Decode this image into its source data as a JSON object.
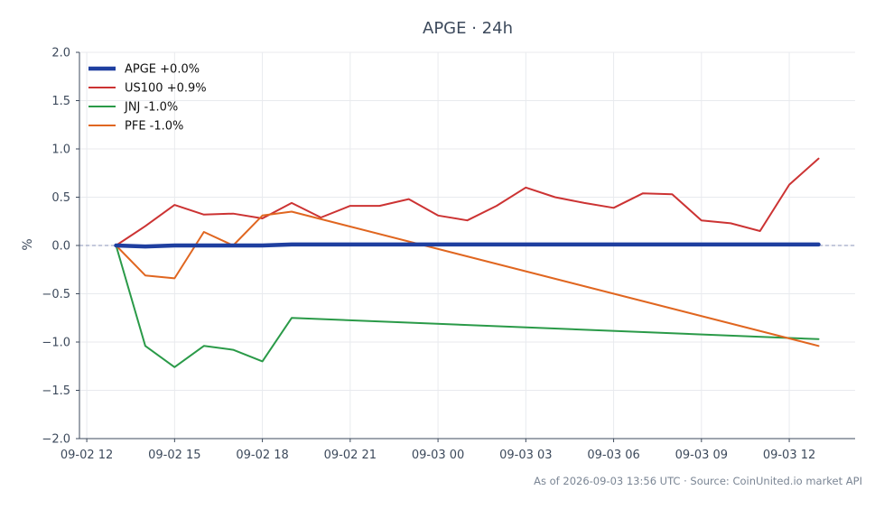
{
  "chart_data": {
    "type": "line",
    "title": "APGE · 24h",
    "xlabel": "",
    "ylabel": "%",
    "ylim": [
      -2.0,
      2.0
    ],
    "yticks": [
      2.0,
      1.5,
      1.0,
      0.5,
      0.0,
      -0.5,
      -1.0,
      -1.5,
      -2.0
    ],
    "ytick_labels": [
      "2.0",
      "1.5",
      "1.0",
      "0.5",
      "0.0",
      "−0.5",
      "−1.0",
      "−1.5",
      "−2.0"
    ],
    "xlim": [
      "2026-09-02 11:45",
      "2026-09-03 14:15"
    ],
    "xticks": [
      "2026-09-02 12:00",
      "2026-09-02 15:00",
      "2026-09-02 18:00",
      "2026-09-02 21:00",
      "2026-09-03 00:00",
      "2026-09-03 03:00",
      "2026-09-03 06:00",
      "2026-09-03 09:00",
      "2026-09-03 12:00"
    ],
    "xtick_labels": [
      "09-02 12",
      "09-02 15",
      "09-02 18",
      "09-02 21",
      "09-03 00",
      "09-03 03",
      "09-03 06",
      "09-03 09",
      "09-03 12"
    ],
    "grid": true,
    "zero_line": true,
    "legend_position": "top-left",
    "series": [
      {
        "name": "APGE +0.0%",
        "color": "#1f3fa0",
        "emphasis": true,
        "x": [
          "2026-09-02 13:00",
          "2026-09-02 14:00",
          "2026-09-02 15:00",
          "2026-09-02 16:00",
          "2026-09-02 17:00",
          "2026-09-02 18:00",
          "2026-09-02 19:00",
          "2026-09-03 13:00"
        ],
        "values": [
          0.0,
          -0.01,
          0.0,
          0.0,
          0.0,
          0.0,
          0.01,
          0.01
        ]
      },
      {
        "name": "US100 +0.9%",
        "color": "#cc3333",
        "x": [
          "2026-09-02 13:00",
          "2026-09-02 14:00",
          "2026-09-02 15:00",
          "2026-09-02 16:00",
          "2026-09-02 17:00",
          "2026-09-02 18:00",
          "2026-09-02 19:00",
          "2026-09-02 20:00",
          "2026-09-02 21:00",
          "2026-09-02 22:00",
          "2026-09-02 23:00",
          "2026-09-03 00:00",
          "2026-09-03 01:00",
          "2026-09-03 02:00",
          "2026-09-03 03:00",
          "2026-09-03 04:00",
          "2026-09-03 05:00",
          "2026-09-03 06:00",
          "2026-09-03 07:00",
          "2026-09-03 08:00",
          "2026-09-03 09:00",
          "2026-09-03 10:00",
          "2026-09-03 11:00",
          "2026-09-03 12:00",
          "2026-09-03 13:00"
        ],
        "values": [
          0.0,
          0.2,
          0.42,
          0.32,
          0.33,
          0.28,
          0.44,
          0.29,
          0.41,
          0.41,
          0.48,
          0.31,
          0.26,
          0.41,
          0.6,
          0.5,
          0.44,
          0.39,
          0.54,
          0.53,
          0.26,
          0.23,
          0.15,
          0.63,
          0.9
        ]
      },
      {
        "name": "JNJ -1.0%",
        "color": "#2a9a48",
        "x": [
          "2026-09-02 13:00",
          "2026-09-02 14:00",
          "2026-09-02 15:00",
          "2026-09-02 16:00",
          "2026-09-02 17:00",
          "2026-09-02 18:00",
          "2026-09-02 19:00",
          "2026-09-03 13:00"
        ],
        "values": [
          0.0,
          -1.04,
          -1.26,
          -1.04,
          -1.08,
          -1.2,
          -0.75,
          -0.97
        ]
      },
      {
        "name": "PFE -1.0%",
        "color": "#e06620",
        "x": [
          "2026-09-02 13:00",
          "2026-09-02 14:00",
          "2026-09-02 15:00",
          "2026-09-02 16:00",
          "2026-09-02 17:00",
          "2026-09-02 18:00",
          "2026-09-02 19:00",
          "2026-09-03 13:00"
        ],
        "values": [
          0.0,
          -0.31,
          -0.34,
          0.14,
          0.0,
          0.31,
          0.35,
          -1.04
        ]
      }
    ]
  },
  "footer": {
    "text": "As of 2026-09-03 13:56 UTC · Source: CoinUnited.io market API"
  }
}
